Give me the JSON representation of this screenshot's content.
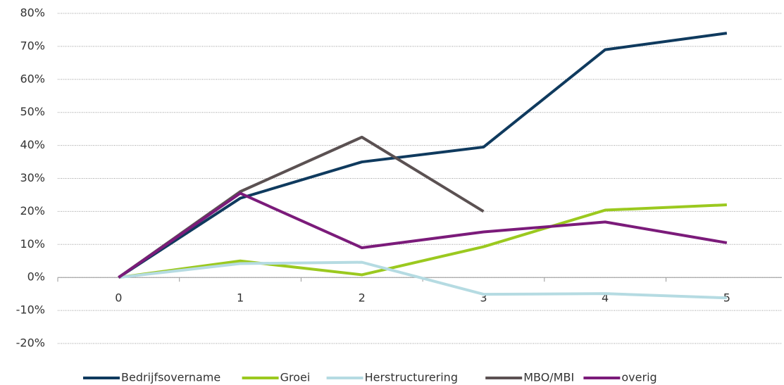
{
  "chart_data": {
    "type": "line",
    "categories": [
      "0",
      "1",
      "2",
      "3",
      "4",
      "5"
    ],
    "series": [
      {
        "name": "Bedrijfsovername",
        "color": "#0f3a5e",
        "values": [
          0,
          24,
          35,
          39.5,
          69,
          74
        ]
      },
      {
        "name": "Groei",
        "color": "#9bc91f",
        "values": [
          0,
          5,
          0.8,
          9.3,
          20.4,
          22
        ]
      },
      {
        "name": "Herstructurering",
        "color": "#b5dbe2",
        "values": [
          0,
          4.2,
          4.6,
          -5.1,
          -4.9,
          -6.2
        ]
      },
      {
        "name": "MBO/MBI",
        "color": "#5b5152",
        "values": [
          0,
          26,
          42.5,
          20,
          null,
          null
        ]
      },
      {
        "name": "overig",
        "color": "#7b1b7a",
        "values": [
          0,
          25.5,
          9,
          13.8,
          16.8,
          10.5
        ]
      }
    ],
    "ylim": [
      -20,
      80
    ],
    "yticks": [
      {
        "value": -20,
        "label": "-20%"
      },
      {
        "value": -10,
        "label": "-10%"
      },
      {
        "value": 0,
        "label": "0%"
      },
      {
        "value": 10,
        "label": "10%"
      },
      {
        "value": 20,
        "label": "20%"
      },
      {
        "value": 30,
        "label": "30%"
      },
      {
        "value": 40,
        "label": "40%"
      },
      {
        "value": 50,
        "label": "50%"
      },
      {
        "value": 60,
        "label": "60%"
      },
      {
        "value": 70,
        "label": "70%"
      },
      {
        "value": 80,
        "label": "80%"
      }
    ],
    "grid": true,
    "legend": "bottom"
  }
}
